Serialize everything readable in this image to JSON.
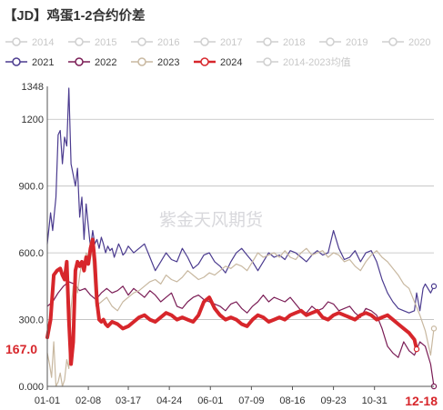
{
  "chart_data": {
    "type": "line",
    "title": "【JD】鸡蛋1-2合约价差",
    "watermark": "紫金天风期货",
    "ylim": [
      0,
      1348
    ],
    "y_ticks": [
      "0.000",
      "300.0",
      "600.0",
      "900.0",
      "1200",
      "1348"
    ],
    "x_ticks": [
      "01-01",
      "02-08",
      "03-17",
      "04-24",
      "06-01",
      "07-09",
      "08-16",
      "09-23",
      "10-31"
    ],
    "x_end_label": "12-18",
    "x_end_color": "#d7262b",
    "last_value_label": "167.0",
    "last_value_color": "#d7262b",
    "grid": "horizontal",
    "legend_position": "top",
    "legend": [
      {
        "name": "2014",
        "color": "#cfcfcf",
        "hidden": true
      },
      {
        "name": "2015",
        "color": "#cfcfcf",
        "hidden": true
      },
      {
        "name": "2016",
        "color": "#cfcfcf",
        "hidden": true
      },
      {
        "name": "2017",
        "color": "#cfcfcf",
        "hidden": true
      },
      {
        "name": "2018",
        "color": "#cfcfcf",
        "hidden": true
      },
      {
        "name": "2019",
        "color": "#cfcfcf",
        "hidden": true
      },
      {
        "name": "2020",
        "color": "#cfcfcf",
        "hidden": true
      },
      {
        "name": "2021",
        "color": "#4b3b8f",
        "hidden": false
      },
      {
        "name": "2022",
        "color": "#7a1c55",
        "hidden": false
      },
      {
        "name": "2023",
        "color": "#c8b8a0",
        "hidden": false
      },
      {
        "name": "2024",
        "color": "#d7262b",
        "hidden": false
      },
      {
        "name": "2014-2023均值",
        "color": "#cfcfcf",
        "hidden": true
      }
    ],
    "series": [
      {
        "name": "2021",
        "color": "#4b3b8f",
        "width": 1.2,
        "x": [
          0,
          3,
          5,
          8,
          10,
          12,
          14,
          16,
          18,
          20,
          22,
          24,
          26,
          28,
          30,
          32,
          34,
          36,
          38,
          40,
          42,
          44,
          46,
          48,
          50,
          52,
          54,
          56,
          58,
          60,
          62,
          64,
          66,
          68,
          70,
          72,
          75,
          80,
          85,
          90,
          95,
          100,
          105,
          110,
          115,
          120,
          125,
          130,
          135,
          140,
          145,
          150,
          155,
          160,
          165,
          170,
          175,
          180,
          185,
          190,
          195,
          200,
          205,
          210,
          215,
          220,
          225,
          230,
          235,
          240,
          245,
          250,
          255,
          260,
          265,
          270,
          275,
          280,
          285,
          290,
          295,
          300,
          305,
          310,
          315,
          320,
          325,
          330,
          335,
          340,
          342,
          345,
          348,
          350,
          355,
          358
        ],
        "y": [
          640,
          780,
          700,
          850,
          1130,
          1150,
          1000,
          1120,
          1080,
          1340,
          1000,
          950,
          900,
          980,
          760,
          850,
          660,
          820,
          720,
          620,
          700,
          640,
          660,
          620,
          670,
          640,
          600,
          630,
          610,
          620,
          580,
          610,
          640,
          620,
          590,
          600,
          630,
          600,
          620,
          640,
          580,
          520,
          560,
          600,
          570,
          560,
          620,
          580,
          530,
          550,
          590,
          600,
          560,
          540,
          510,
          560,
          600,
          620,
          590,
          560,
          520,
          560,
          600,
          580,
          590,
          570,
          610,
          600,
          580,
          560,
          590,
          610,
          590,
          600,
          700,
          620,
          570,
          580,
          610,
          560,
          600,
          610,
          560,
          480,
          420,
          380,
          350,
          340,
          330,
          340,
          420,
          340,
          440,
          460,
          420,
          450
        ]
      },
      {
        "name": "2022",
        "color": "#7a1c55",
        "width": 1.2,
        "x": [
          0,
          5,
          10,
          15,
          20,
          25,
          30,
          35,
          40,
          45,
          50,
          55,
          60,
          65,
          70,
          75,
          80,
          85,
          90,
          95,
          100,
          105,
          110,
          115,
          120,
          125,
          130,
          135,
          140,
          145,
          150,
          155,
          160,
          165,
          170,
          175,
          180,
          185,
          190,
          195,
          200,
          205,
          210,
          215,
          220,
          225,
          230,
          235,
          240,
          245,
          250,
          255,
          260,
          265,
          270,
          275,
          280,
          285,
          290,
          295,
          300,
          305,
          310,
          315,
          320,
          325,
          330,
          335,
          340,
          345,
          350,
          355,
          358
        ],
        "y": [
          360,
          380,
          420,
          450,
          470,
          460,
          430,
          440,
          410,
          390,
          420,
          440,
          420,
          430,
          450,
          410,
          440,
          420,
          400,
          430,
          410,
          380,
          400,
          420,
          360,
          350,
          380,
          400,
          410,
          390,
          380,
          370,
          360,
          340,
          370,
          380,
          350,
          330,
          360,
          380,
          410,
          380,
          400,
          390,
          380,
          400,
          370,
          340,
          330,
          360,
          340,
          350,
          380,
          370,
          340,
          350,
          360,
          330,
          310,
          350,
          340,
          320,
          260,
          180,
          150,
          130,
          200,
          160,
          140,
          200,
          180,
          100,
          0
        ]
      },
      {
        "name": "2023",
        "color": "#c8b8a0",
        "width": 1.2,
        "x": [
          0,
          2,
          4,
          6,
          8,
          10,
          12,
          14,
          16,
          18,
          20,
          22,
          24,
          26,
          28,
          30,
          32,
          34,
          36,
          38,
          40,
          42,
          45,
          50,
          55,
          60,
          65,
          70,
          75,
          80,
          85,
          90,
          95,
          100,
          105,
          110,
          115,
          120,
          125,
          130,
          135,
          140,
          145,
          150,
          155,
          160,
          165,
          170,
          175,
          180,
          185,
          190,
          195,
          200,
          205,
          210,
          215,
          220,
          225,
          230,
          235,
          240,
          245,
          250,
          255,
          260,
          265,
          270,
          275,
          280,
          285,
          290,
          295,
          300,
          305,
          310,
          315,
          320,
          325,
          330,
          335,
          340,
          345,
          350,
          355,
          358
        ],
        "y": [
          150,
          100,
          40,
          200,
          0,
          20,
          60,
          0,
          30,
          120,
          80,
          350,
          450,
          480,
          420,
          500,
          560,
          540,
          600,
          580,
          650,
          580,
          360,
          380,
          400,
          360,
          340,
          380,
          400,
          420,
          430,
          450,
          470,
          480,
          460,
          500,
          480,
          470,
          490,
          520,
          500,
          480,
          490,
          510,
          500,
          520,
          540,
          530,
          550,
          540,
          520,
          560,
          600,
          580,
          590,
          600,
          580,
          610,
          580,
          570,
          600,
          620,
          590,
          600,
          610,
          580,
          600,
          590,
          560,
          570,
          540,
          520,
          560,
          590,
          610,
          580,
          560,
          530,
          500,
          460,
          440,
          380,
          320,
          250,
          140,
          260
        ]
      },
      {
        "name": "2024",
        "color": "#d7262b",
        "width": 4,
        "x": [
          0,
          3,
          6,
          9,
          12,
          14,
          16,
          18,
          20,
          22,
          24,
          26,
          28,
          30,
          32,
          34,
          36,
          38,
          40,
          42,
          44,
          46,
          48,
          50,
          52,
          54,
          56,
          60,
          65,
          70,
          75,
          80,
          85,
          90,
          95,
          100,
          105,
          110,
          115,
          120,
          125,
          130,
          135,
          140,
          145,
          150,
          155,
          160,
          165,
          170,
          175,
          180,
          185,
          190,
          195,
          200,
          205,
          210,
          215,
          220,
          225,
          230,
          235,
          240,
          245,
          250,
          255,
          260,
          265,
          270,
          275,
          280,
          285,
          290,
          295,
          300,
          305,
          310,
          315,
          320,
          325,
          330,
          335,
          340,
          342
        ],
        "y": [
          220,
          300,
          500,
          520,
          530,
          500,
          480,
          560,
          300,
          100,
          200,
          520,
          560,
          540,
          560,
          520,
          580,
          550,
          620,
          660,
          560,
          380,
          300,
          290,
          300,
          280,
          270,
          290,
          280,
          260,
          270,
          290,
          310,
          320,
          300,
          290,
          310,
          330,
          320,
          300,
          310,
          300,
          290,
          320,
          380,
          400,
          350,
          320,
          300,
          310,
          300,
          280,
          270,
          300,
          320,
          310,
          290,
          300,
          310,
          300,
          320,
          330,
          340,
          320,
          330,
          340,
          310,
          300,
          320,
          330,
          320,
          310,
          300,
          320,
          330,
          320,
          300,
          310,
          320,
          300,
          280,
          260,
          240,
          210,
          167
        ]
      }
    ]
  }
}
